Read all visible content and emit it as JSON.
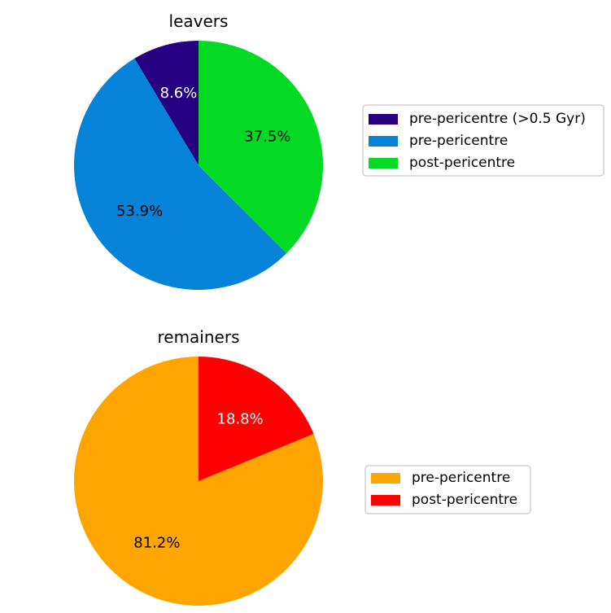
{
  "chart_data": [
    {
      "type": "pie",
      "title": "leavers",
      "start_angle_deg": 90,
      "direction": "counterclockwise",
      "legend_position": "right",
      "slices": [
        {
          "label": "pre-pericentre (>0.5 Gyr)",
          "value": 8.6,
          "pct_label": "8.6%",
          "color": "#250080",
          "label_color": "#ffffff"
        },
        {
          "label": "pre-pericentre",
          "value": 53.9,
          "pct_label": "53.9%",
          "color": "#0483d9",
          "label_color": "#000000"
        },
        {
          "label": "post-pericentre",
          "value": 37.5,
          "pct_label": "37.5%",
          "color": "#04d923",
          "label_color": "#000000"
        }
      ]
    },
    {
      "type": "pie",
      "title": "remainers",
      "start_angle_deg": 90,
      "direction": "counterclockwise",
      "legend_position": "right",
      "slices": [
        {
          "label": "pre-pericentre",
          "value": 81.2,
          "pct_label": "81.2%",
          "color": "#ffa500",
          "label_color": "#000000"
        },
        {
          "label": "post-pericentre",
          "value": 18.8,
          "pct_label": "18.8%",
          "color": "#ff0000",
          "label_color": "#ffffff"
        }
      ]
    }
  ]
}
